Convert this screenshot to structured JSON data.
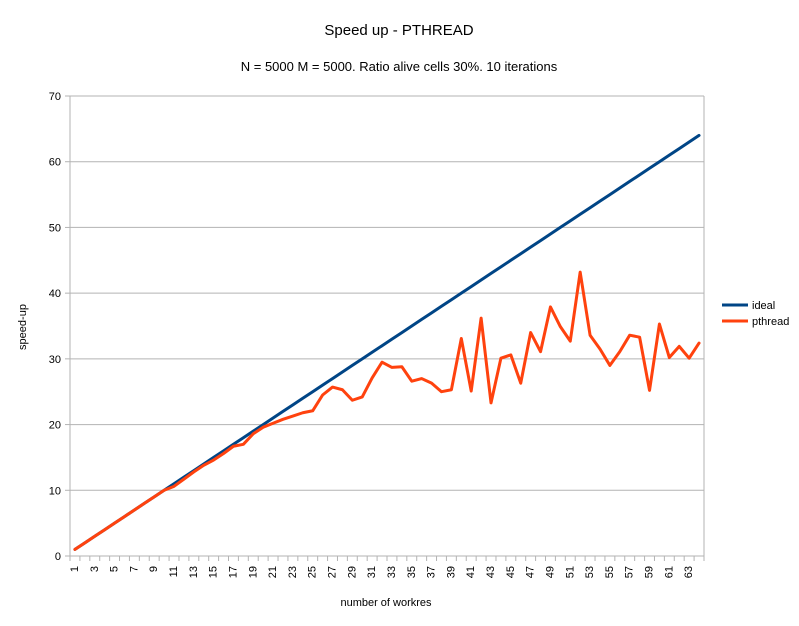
{
  "chart_data": {
    "type": "line",
    "title": "Speed up - PTHREAD",
    "subtitle": "N = 5000 M = 5000. Ratio alive cells 30%. 10 iterations",
    "xlabel": "number of workres",
    "ylabel": "speed-up",
    "ylim": [
      0,
      70
    ],
    "yticks": [
      0,
      10,
      20,
      30,
      40,
      50,
      60,
      70
    ],
    "grid": true,
    "legend_position": "right",
    "x": [
      1,
      2,
      3,
      4,
      5,
      6,
      7,
      8,
      9,
      10,
      11,
      12,
      13,
      14,
      15,
      16,
      17,
      18,
      19,
      20,
      21,
      22,
      23,
      24,
      25,
      26,
      27,
      28,
      29,
      30,
      31,
      32,
      33,
      34,
      35,
      36,
      37,
      38,
      39,
      40,
      41,
      42,
      43,
      44,
      45,
      46,
      47,
      48,
      49,
      50,
      51,
      52,
      53,
      54,
      55,
      56,
      57,
      58,
      59,
      60,
      61,
      62,
      63,
      64
    ],
    "xtick_labels": [
      "1",
      "3",
      "5",
      "7",
      "9",
      "11",
      "13",
      "15",
      "17",
      "19",
      "21",
      "23",
      "25",
      "27",
      "29",
      "31",
      "33",
      "35",
      "37",
      "39",
      "41",
      "43",
      "45",
      "47",
      "49",
      "51",
      "53",
      "55",
      "57",
      "59",
      "61",
      "63"
    ],
    "series": [
      {
        "name": "ideal",
        "color": "#004586",
        "values": [
          1,
          2,
          3,
          4,
          5,
          6,
          7,
          8,
          9,
          10,
          11,
          12,
          13,
          14,
          15,
          16,
          17,
          18,
          19,
          20,
          21,
          22,
          23,
          24,
          25,
          26,
          27,
          28,
          29,
          30,
          31,
          32,
          33,
          34,
          35,
          36,
          37,
          38,
          39,
          40,
          41,
          42,
          43,
          44,
          45,
          46,
          47,
          48,
          49,
          50,
          51,
          52,
          53,
          54,
          55,
          56,
          57,
          58,
          59,
          60,
          61,
          62,
          63,
          64
        ]
      },
      {
        "name": "pthread",
        "color": "#ff420e",
        "values": [
          1,
          2,
          3,
          4,
          5,
          6,
          7,
          8,
          9,
          10,
          10.6,
          11.7,
          12.8,
          13.8,
          14.6,
          15.6,
          16.7,
          17.0,
          18.6,
          19.6,
          20.2,
          20.8,
          21.3,
          21.8,
          22.1,
          24.5,
          25.7,
          25.3,
          23.7,
          24.2,
          27.1,
          29.5,
          28.7,
          28.8,
          26.6,
          27.0,
          26.3,
          25.0,
          25.3,
          33.1,
          25.1,
          36.2,
          23.3,
          30.1,
          30.6,
          26.3,
          34.0,
          31.1,
          37.9,
          34.9,
          32.7,
          43.2,
          33.6,
          31.5,
          29.0,
          31.1,
          33.6,
          33.3,
          25.2,
          35.3,
          30.2,
          31.9,
          30.1,
          32.4
        ]
      }
    ]
  }
}
